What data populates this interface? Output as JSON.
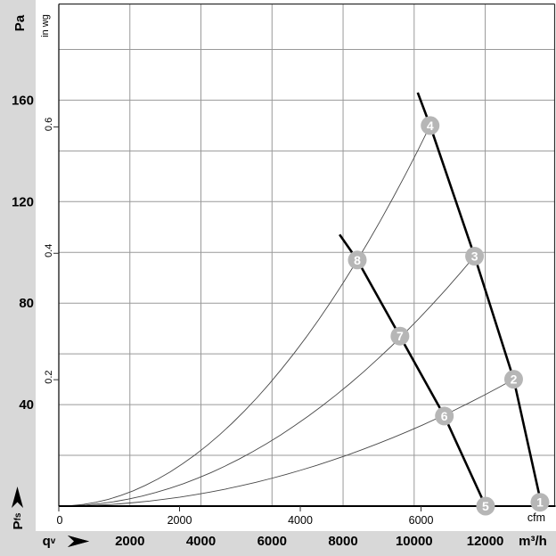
{
  "labels": {
    "y_unit_primary": "Pa",
    "y_unit_secondary": "in wg",
    "p_main": "P",
    "p_sub": "fs",
    "q_main": "q",
    "q_sub": "v",
    "x_unit_primary": "cfm",
    "x_unit_secondary": "m³/h",
    "origin_tick": "0"
  },
  "colors": {
    "margin_gray": "#d8d8d8",
    "plot_bg": "#ffffff",
    "gridline": "#999999",
    "border": "#2e2e2e",
    "axis": "#000000",
    "fan_curve": "#000000",
    "system_curve": "#474747",
    "marker_fill": "#b6b6b6",
    "marker_text": "#ffffff",
    "text": "#000000"
  },
  "chart_data": {
    "type": "line",
    "title": "Fan air-performance chart with operating points",
    "x_axis_primary": {
      "quantity": "qv",
      "unit": "cfm",
      "ticks": [
        0,
        2000,
        4000,
        6000
      ]
    },
    "x_axis_secondary": {
      "quantity": "qv",
      "unit": "m³/h",
      "ticks": [
        2000,
        4000,
        6000,
        8000,
        10000,
        12000
      ],
      "range": [
        0,
        14000
      ],
      "gridline_step": 2000
    },
    "y_axis_primary": {
      "quantity": "Pfs",
      "unit": "Pa",
      "ticks": [
        40,
        80,
        120,
        160
      ],
      "range": [
        0,
        198
      ],
      "gridline_step": 20
    },
    "y_axis_secondary": {
      "quantity": "Pfs",
      "unit": "in wg",
      "ticks": [
        0.2,
        0.4,
        0.6
      ]
    },
    "unit_conversion": {
      "pa_per_inwg": 249.1,
      "m3h_per_cfm": 1.699
    },
    "grid": true,
    "fan_curves": [
      {
        "name": "fan-curve-right",
        "style": "thick",
        "points_m3h_pa": [
          [
            10100,
            163
          ],
          [
            10450,
            150
          ],
          [
            11700,
            98.5
          ],
          [
            12800,
            50
          ],
          [
            13590,
            0
          ]
        ]
      },
      {
        "name": "fan-curve-left",
        "style": "thick",
        "points_m3h_pa": [
          [
            7900,
            107
          ],
          [
            8400,
            97
          ],
          [
            9600,
            67
          ],
          [
            10850,
            35.5
          ],
          [
            12010,
            0
          ]
        ]
      }
    ],
    "system_curves": [
      {
        "name": "system-curve-a",
        "style": "thin",
        "parabola_from_origin_through": [
          10450,
          150
        ]
      },
      {
        "name": "system-curve-b",
        "style": "thin",
        "parabola_from_origin_through": [
          11700,
          98.5
        ]
      },
      {
        "name": "system-curve-c",
        "style": "thin",
        "parabola_from_origin_through": [
          12800,
          50
        ]
      }
    ],
    "operating_points": [
      {
        "label": "1",
        "m3h": 13540,
        "pa": 1.5
      },
      {
        "label": "2",
        "m3h": 12800,
        "pa": 50
      },
      {
        "label": "3",
        "m3h": 11700,
        "pa": 98.5
      },
      {
        "label": "4",
        "m3h": 10450,
        "pa": 150
      },
      {
        "label": "5",
        "m3h": 12010,
        "pa": 0
      },
      {
        "label": "6",
        "m3h": 10850,
        "pa": 35.5
      },
      {
        "label": "7",
        "m3h": 9600,
        "pa": 67
      },
      {
        "label": "8",
        "m3h": 8400,
        "pa": 97
      }
    ]
  }
}
